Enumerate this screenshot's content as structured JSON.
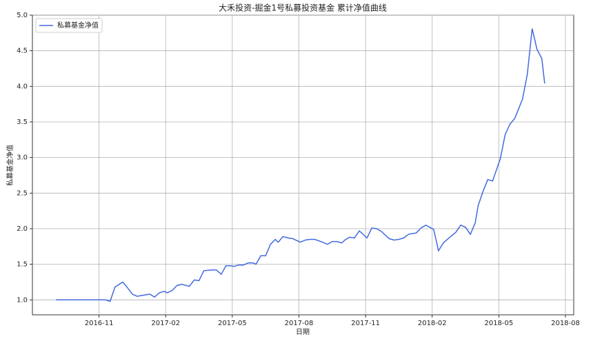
{
  "chart_data": {
    "type": "line",
    "title": "大禾投资-掘金1号私募投资基金 累计净值曲线",
    "x_label": "日期",
    "y_label": "私募基金净值",
    "x": [
      "2016-09",
      "2016-09",
      "2016-09",
      "2016-10",
      "2016-10",
      "2016-10",
      "2016-10",
      "2016-11",
      "2016-11",
      "2016-11",
      "2016-11",
      "2016-12",
      "2016-12",
      "2016-12",
      "2016-12",
      "2017-01",
      "2017-01",
      "2017-01",
      "2017-01",
      "2017-01",
      "2017-02",
      "2017-02",
      "2017-02",
      "2017-02",
      "2017-03",
      "2017-03",
      "2017-03",
      "2017-03",
      "2017-04",
      "2017-04",
      "2017-04",
      "2017-04",
      "2017-04",
      "2017-05",
      "2017-05",
      "2017-05",
      "2017-05",
      "2017-05",
      "2017-06",
      "2017-06",
      "2017-06",
      "2017-06",
      "2017-06",
      "2017-07",
      "2017-07",
      "2017-07",
      "2017-07",
      "2017-08",
      "2017-08",
      "2017-08",
      "2017-08",
      "2017-09",
      "2017-09",
      "2017-09",
      "2017-09",
      "2017-09",
      "2017-10",
      "2017-10",
      "2017-10",
      "2017-10",
      "2017-11",
      "2017-11",
      "2017-11",
      "2017-11",
      "2017-12",
      "2017-12",
      "2017-12",
      "2017-12",
      "2017-12",
      "2018-01",
      "2018-01",
      "2018-01",
      "2018-01",
      "2018-02",
      "2018-02",
      "2018-02",
      "2018-02",
      "2018-03",
      "2018-03",
      "2018-03",
      "2018-03",
      "2018-03",
      "2018-04",
      "2018-04",
      "2018-04",
      "2018-04",
      "2018-05",
      "2018-05",
      "2018-05",
      "2018-05",
      "2018-06",
      "2018-06",
      "2018-06",
      "2018-06",
      "2018-06",
      "2018-07"
    ],
    "series": [
      {
        "name": "私募基金净值",
        "color": "#4169e1",
        "values": [
          1.0,
          1.0,
          1.0,
          1.0,
          1.0,
          1.0,
          1.0,
          1.0,
          1.0,
          0.98,
          1.18,
          1.25,
          1.17,
          1.08,
          1.05,
          1.07,
          1.08,
          1.04,
          1.1,
          1.12,
          1.1,
          1.13,
          1.2,
          1.22,
          1.19,
          1.28,
          1.27,
          1.41,
          1.42,
          1.42,
          1.36,
          1.48,
          1.48,
          1.47,
          1.49,
          1.49,
          1.52,
          1.52,
          1.5,
          1.62,
          1.62,
          1.78,
          1.85,
          1.81,
          1.89,
          1.87,
          1.86,
          1.81,
          1.84,
          1.85,
          1.85,
          1.81,
          1.78,
          1.82,
          1.82,
          1.8,
          1.84,
          1.88,
          1.87,
          1.97,
          1.87,
          2.01,
          2.0,
          1.96,
          1.86,
          1.84,
          1.85,
          1.87,
          1.92,
          1.93,
          1.94,
          2.01,
          2.05,
          1.99,
          1.69,
          1.8,
          1.86,
          1.95,
          2.05,
          2.02,
          1.92,
          2.08,
          2.32,
          2.52,
          2.69,
          2.67,
          2.98,
          3.32,
          3.47,
          3.55,
          3.82,
          4.17,
          4.81,
          4.52,
          4.39,
          4.04
        ]
      }
    ],
    "xlim": [
      "2016-08",
      "2018-08"
    ],
    "xticks": [
      "2016-11",
      "2017-02",
      "2017-05",
      "2017-08",
      "2017-11",
      "2018-02",
      "2018-05",
      "2018-08"
    ],
    "ylim": [
      0.79,
      5.0
    ],
    "yticks": [
      {
        "value": 1,
        "label": "1.0"
      },
      {
        "value": 1.5,
        "label": "1.5"
      },
      {
        "value": 2,
        "label": "2.0"
      },
      {
        "value": 2.5,
        "label": "2.5"
      },
      {
        "value": 3,
        "label": "3.0"
      },
      {
        "value": 3.5,
        "label": "3.5"
      },
      {
        "value": 4,
        "label": "4.0"
      },
      {
        "value": 4.5,
        "label": "4.5"
      },
      {
        "value": 5,
        "label": "5.0"
      }
    ],
    "grid": true,
    "legend": "upper left"
  }
}
